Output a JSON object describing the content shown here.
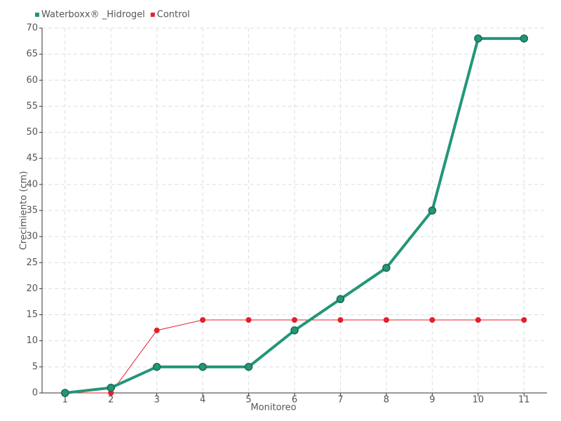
{
  "chart_data": {
    "type": "line",
    "x_label": "Monitoreo",
    "y_label": "Crecimiento (cm)",
    "categories": [
      "1",
      "2",
      "3",
      "4",
      "5",
      "6",
      "7",
      "8",
      "9",
      "10",
      "11"
    ],
    "series": [
      {
        "name": "Waterboxx® _Hidrogel",
        "color": "#239678",
        "values": [
          0,
          1,
          5,
          5,
          5,
          12,
          18,
          24,
          35,
          68,
          68
        ]
      },
      {
        "name": "Control",
        "color": "#e31f2b",
        "values": [
          0,
          0,
          12,
          14,
          14,
          14,
          14,
          14,
          14,
          14,
          14
        ]
      }
    ],
    "ylim": [
      0,
      70
    ],
    "yticks": [
      0,
      5,
      10,
      15,
      20,
      25,
      30,
      35,
      40,
      45,
      50,
      55,
      60,
      65,
      70
    ],
    "grid": true,
    "legend": "top-left"
  }
}
